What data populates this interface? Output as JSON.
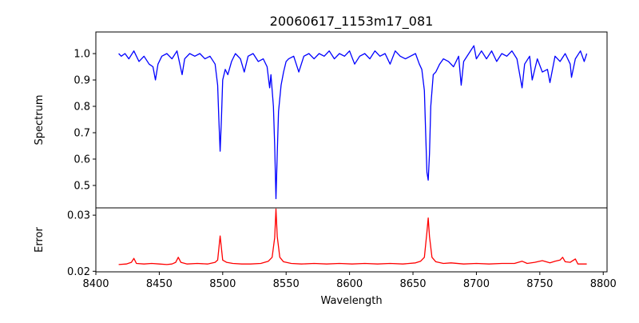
{
  "chart_data": [
    {
      "type": "line",
      "title": "20060617_1153m17_081",
      "xlabel": "",
      "ylabel": "Spectrum",
      "xlim": [
        8400,
        8803
      ],
      "ylim": [
        0.415,
        1.082
      ],
      "yticks": [
        0.5,
        0.6,
        0.7,
        0.8,
        0.9,
        1.0
      ],
      "ytick_labels": [
        "0.5",
        "0.6",
        "0.7",
        "0.8",
        "0.9",
        "1.0"
      ],
      "grid": false,
      "series": [
        {
          "name": "Spectrum",
          "color": "#0000ff",
          "x": [
            8418,
            8420,
            8423,
            8426,
            8430,
            8434,
            8438,
            8442,
            8445,
            8447,
            8449,
            8452,
            8456,
            8460,
            8464,
            8468,
            8470,
            8474,
            8478,
            8482,
            8486,
            8490,
            8494,
            8496,
            8497,
            8498,
            8499,
            8500,
            8502,
            8504,
            8507,
            8510,
            8514,
            8517,
            8520,
            8524,
            8528,
            8532,
            8535,
            8537,
            8538,
            8540,
            8541,
            8542,
            8543,
            8544,
            8546,
            8548,
            8550,
            8552,
            8556,
            8560,
            8564,
            8568,
            8572,
            8576,
            8580,
            8584,
            8588,
            8592,
            8596,
            8600,
            8604,
            8608,
            8612,
            8616,
            8620,
            8624,
            8628,
            8632,
            8636,
            8640,
            8644,
            8648,
            8652,
            8655,
            8657,
            8659,
            8660,
            8661,
            8662,
            8663,
            8664,
            8666,
            8668,
            8671,
            8674,
            8678,
            8682,
            8686,
            8688,
            8690,
            8694,
            8698,
            8700,
            8704,
            8708,
            8712,
            8716,
            8720,
            8724,
            8728,
            8732,
            8736,
            8738,
            8742,
            8744,
            8748,
            8752,
            8756,
            8758,
            8762,
            8766,
            8770,
            8774,
            8775,
            8778,
            8782,
            8785,
            8787
          ],
          "y": [
            1.0,
            0.99,
            1.0,
            0.98,
            1.01,
            0.97,
            0.99,
            0.96,
            0.95,
            0.9,
            0.96,
            0.99,
            1.0,
            0.98,
            1.01,
            0.92,
            0.98,
            1.0,
            0.99,
            1.0,
            0.98,
            0.99,
            0.96,
            0.88,
            0.75,
            0.63,
            0.75,
            0.9,
            0.94,
            0.92,
            0.97,
            1.0,
            0.98,
            0.93,
            0.99,
            1.0,
            0.97,
            0.98,
            0.95,
            0.87,
            0.92,
            0.8,
            0.65,
            0.45,
            0.62,
            0.78,
            0.88,
            0.93,
            0.97,
            0.98,
            0.99,
            0.93,
            0.99,
            1.0,
            0.98,
            1.0,
            0.99,
            1.01,
            0.98,
            1.0,
            0.99,
            1.01,
            0.96,
            0.99,
            1.0,
            0.98,
            1.01,
            0.99,
            1.0,
            0.96,
            1.01,
            0.99,
            0.98,
            0.99,
            1.0,
            0.96,
            0.94,
            0.86,
            0.7,
            0.55,
            0.52,
            0.62,
            0.8,
            0.92,
            0.93,
            0.96,
            0.98,
            0.97,
            0.95,
            0.99,
            0.88,
            0.97,
            1.0,
            1.03,
            0.98,
            1.01,
            0.98,
            1.01,
            0.97,
            1.0,
            0.99,
            1.01,
            0.98,
            0.87,
            0.96,
            0.99,
            0.9,
            0.98,
            0.93,
            0.94,
            0.89,
            0.99,
            0.97,
            1.0,
            0.96,
            0.91,
            0.98,
            1.01,
            0.97,
            1.0
          ]
        }
      ]
    },
    {
      "type": "line",
      "title": "",
      "xlabel": "Wavelength",
      "ylabel": "Error",
      "xlim": [
        8400,
        8803
      ],
      "ylim": [
        0.0199,
        0.0313
      ],
      "xticks": [
        8400,
        8450,
        8500,
        8550,
        8600,
        8650,
        8700,
        8750,
        8800
      ],
      "xtick_labels": [
        "8400",
        "8450",
        "8500",
        "8550",
        "8600",
        "8650",
        "8700",
        "8750",
        "8800"
      ],
      "yticks": [
        0.02,
        0.03
      ],
      "ytick_labels": [
        "0.02",
        "0.03"
      ],
      "grid": false,
      "series": [
        {
          "name": "Error",
          "color": "#ff0000",
          "x": [
            8418,
            8424,
            8428,
            8430,
            8432,
            8438,
            8444,
            8450,
            8456,
            8460,
            8463,
            8465,
            8467,
            8472,
            8480,
            8488,
            8494,
            8496,
            8498,
            8500,
            8503,
            8508,
            8515,
            8522,
            8530,
            8536,
            8539,
            8541,
            8542,
            8543,
            8545,
            8548,
            8554,
            8562,
            8572,
            8582,
            8592,
            8602,
            8612,
            8622,
            8632,
            8642,
            8652,
            8656,
            8659,
            8661,
            8662,
            8663,
            8665,
            8668,
            8674,
            8680,
            8690,
            8700,
            8710,
            8720,
            8730,
            8736,
            8740,
            8746,
            8752,
            8758,
            8762,
            8766,
            8768,
            8770,
            8774,
            8778,
            8780,
            8784,
            8787
          ],
          "y": [
            0.0212,
            0.0213,
            0.0216,
            0.0223,
            0.0214,
            0.0213,
            0.0214,
            0.0213,
            0.0212,
            0.0213,
            0.0216,
            0.0225,
            0.0216,
            0.0213,
            0.0214,
            0.0213,
            0.0216,
            0.022,
            0.0263,
            0.022,
            0.0216,
            0.0214,
            0.0213,
            0.0213,
            0.0214,
            0.0218,
            0.0225,
            0.026,
            0.0311,
            0.0262,
            0.0225,
            0.0217,
            0.0214,
            0.0213,
            0.0214,
            0.0213,
            0.0214,
            0.0213,
            0.0214,
            0.0213,
            0.0214,
            0.0213,
            0.0215,
            0.0218,
            0.0225,
            0.027,
            0.0295,
            0.0262,
            0.0225,
            0.0217,
            0.0214,
            0.0215,
            0.0213,
            0.0214,
            0.0213,
            0.0214,
            0.0214,
            0.0218,
            0.0214,
            0.0216,
            0.0219,
            0.0215,
            0.0218,
            0.022,
            0.0225,
            0.0217,
            0.0216,
            0.0222,
            0.0213,
            0.0213,
            0.0213
          ]
        }
      ]
    }
  ]
}
